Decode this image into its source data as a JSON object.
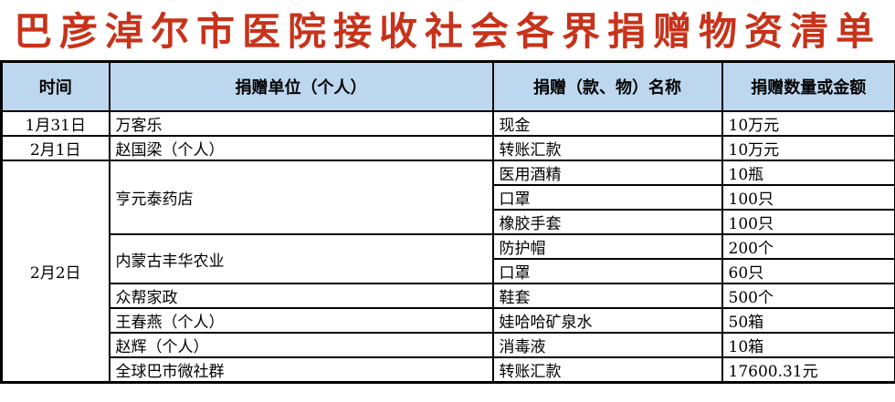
{
  "title": "巴彦淖尔市医院接收社会各界捐赠物资清单",
  "colors": {
    "title": "#c8321a",
    "header_bg": "#bdd7ee"
  },
  "headers": [
    "时间",
    "捐赠单位（个人）",
    "捐赠（款、物）名称",
    "捐赠数量或金额"
  ],
  "dates": [
    "1月31日",
    "2月1日",
    "2月2日"
  ],
  "donors": [
    "万客乐",
    "赵国梁（个人）",
    "亨元泰药店",
    "内蒙古丰华农业",
    "众帮家政",
    "王春燕（个人）",
    "赵辉（个人）",
    "全球巴市微社群"
  ],
  "items": [
    {
      "name": "现金",
      "qty": "10万元"
    },
    {
      "name": "转账汇款",
      "qty": "10万元"
    },
    {
      "name": "医用酒精",
      "qty": "10瓶"
    },
    {
      "name": "口罩",
      "qty": "100只"
    },
    {
      "name": "橡胶手套",
      "qty": "100只"
    },
    {
      "name": "防护帽",
      "qty": "200个"
    },
    {
      "name": "口罩",
      "qty": "60只"
    },
    {
      "name": "鞋套",
      "qty": "500个"
    },
    {
      "name": "娃哈哈矿泉水",
      "qty": "50箱"
    },
    {
      "name": "消毒液",
      "qty": "10箱"
    },
    {
      "name": "转账汇款",
      "qty": "17600.31元"
    }
  ]
}
